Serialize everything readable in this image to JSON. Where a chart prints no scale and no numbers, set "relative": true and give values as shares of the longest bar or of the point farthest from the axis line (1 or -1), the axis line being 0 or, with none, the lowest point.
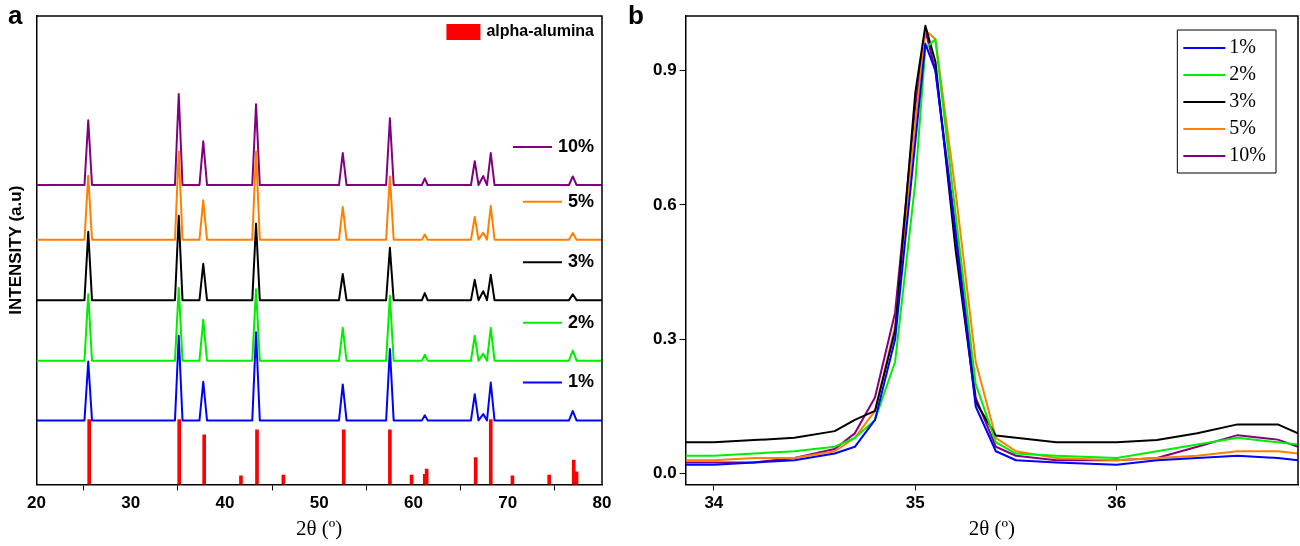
{
  "chart_data": [
    {
      "type": "line",
      "title": "a",
      "xlabel": "2θ (º)",
      "ylabel": "INTENSITY (a.u)",
      "relative": true,
      "xlim": [
        20,
        80
      ],
      "xticks": [
        20,
        30,
        40,
        50,
        60,
        70,
        80
      ],
      "legend": "top right",
      "x": [
        20,
        25.1,
        25.5,
        25.9,
        34.7,
        35.1,
        35.5,
        37.3,
        37.7,
        38.1,
        42.9,
        43.3,
        43.7,
        52.1,
        52.5,
        52.9,
        57.1,
        57.5,
        57.9,
        60.9,
        61.2,
        61.5,
        66.1,
        66.5,
        66.9,
        67.4,
        67.8,
        68.2,
        68.6,
        76.5,
        76.9,
        77.3,
        80
      ],
      "series": [
        {
          "name": "alpha-alumina",
          "type": "bar",
          "color": "#ff0000",
          "x": [
            25.6,
            35.15,
            37.8,
            41.7,
            43.4,
            46.2,
            52.6,
            57.5,
            59.8,
            61.2,
            61.4,
            66.6,
            68.2,
            70.5,
            74.4,
            77.0,
            77.3
          ],
          "values": [
            0.166,
            0.166,
            0.127,
            0.022,
            0.14,
            0.024,
            0.14,
            0.14,
            0.024,
            0.026,
            0.039,
            0.069,
            0.166,
            0.022,
            0.024,
            0.0625,
            0.032
          ]
        },
        {
          "name": "1%",
          "color": "#0000ff",
          "values": [
            0.164,
            0.164,
            0.315,
            0.164,
            0.164,
            0.381,
            0.164,
            0.164,
            0.263,
            0.164,
            0.164,
            0.39,
            0.164,
            0.164,
            0.256,
            0.164,
            0.164,
            0.347,
            0.164,
            0.164,
            0.177,
            0.164,
            0.164,
            0.231,
            0.164,
            0.18,
            0.164,
            0.261,
            0.164,
            0.164,
            0.188,
            0.164,
            0.164
          ]
        },
        {
          "name": "2%",
          "color": "#00ee00",
          "values": [
            0.317,
            0.317,
            0.487,
            0.317,
            0.317,
            0.504,
            0.317,
            0.317,
            0.422,
            0.317,
            0.317,
            0.5,
            0.317,
            0.317,
            0.401,
            0.317,
            0.317,
            0.483,
            0.317,
            0.317,
            0.332,
            0.317,
            0.317,
            0.381,
            0.317,
            0.335,
            0.317,
            0.401,
            0.317,
            0.317,
            0.343,
            0.317,
            0.317
          ]
        },
        {
          "name": "3%",
          "color": "#000000",
          "values": [
            0.472,
            0.472,
            0.647,
            0.472,
            0.472,
            0.688,
            0.472,
            0.472,
            0.565,
            0.472,
            0.472,
            0.668,
            0.472,
            0.472,
            0.539,
            0.472,
            0.472,
            0.606,
            0.472,
            0.472,
            0.49,
            0.472,
            0.472,
            0.524,
            0.472,
            0.495,
            0.472,
            0.537,
            0.472,
            0.472,
            0.487,
            0.472,
            0.472
          ]
        },
        {
          "name": "5%",
          "color": "#ff8000",
          "values": [
            0.627,
            0.627,
            0.791,
            0.627,
            0.627,
            0.853,
            0.627,
            0.627,
            0.728,
            0.627,
            0.627,
            0.853,
            0.627,
            0.627,
            0.711,
            0.627,
            0.627,
            0.789,
            0.627,
            0.627,
            0.64,
            0.627,
            0.627,
            0.685,
            0.627,
            0.645,
            0.627,
            0.713,
            0.627,
            0.627,
            0.644,
            0.627,
            0.627
          ]
        },
        {
          "name": "10%",
          "color": "#800080",
          "values": [
            0.767,
            0.767,
            0.933,
            0.767,
            0.767,
            1,
            0.767,
            0.767,
            0.879,
            0.767,
            0.767,
            0.974,
            0.767,
            0.767,
            0.849,
            0.767,
            0.767,
            0.938,
            0.767,
            0.767,
            0.784,
            0.767,
            0.767,
            0.828,
            0.767,
            0.79,
            0.767,
            0.849,
            0.767,
            0.767,
            0.789,
            0.767,
            0.767
          ]
        }
      ]
    },
    {
      "type": "line",
      "title": "b",
      "xlabel": "2θ (º)",
      "xlim": [
        33.86,
        36.9
      ],
      "xticks": [
        34,
        35,
        36
      ],
      "ylim": [
        -0.024,
        1.022
      ],
      "yticks": [
        {
          "value": 0,
          "label": "0.0"
        },
        0.3,
        0.6,
        0.9
      ],
      "legend": "top right",
      "x": [
        33.86,
        34,
        34.2,
        34.4,
        34.6,
        34.7,
        34.8,
        34.9,
        35.0,
        35.05,
        35.1,
        35.2,
        35.3,
        35.4,
        35.5,
        35.7,
        36,
        36.2,
        36.4,
        36.6,
        36.8,
        36.9
      ],
      "series": [
        {
          "name": "1%",
          "color": "#0000ff",
          "values": [
            0.02,
            0.02,
            0.025,
            0.03,
            0.045,
            0.06,
            0.12,
            0.3,
            0.74,
            0.96,
            0.9,
            0.53,
            0.15,
            0.05,
            0.03,
            0.025,
            0.02,
            0.03,
            0.035,
            0.04,
            0.035,
            0.03
          ]
        },
        {
          "name": "2%",
          "color": "#00ee00",
          "values": [
            0.04,
            0.04,
            0.045,
            0.05,
            0.06,
            0.08,
            0.12,
            0.25,
            0.65,
            0.95,
            0.97,
            0.58,
            0.2,
            0.07,
            0.045,
            0.04,
            0.035,
            0.05,
            0.065,
            0.08,
            0.07,
            0.065
          ]
        },
        {
          "name": "3%",
          "color": "#000000",
          "values": [
            0.07,
            0.07,
            0.075,
            0.08,
            0.095,
            0.12,
            0.14,
            0.32,
            0.85,
            1.0,
            0.92,
            0.5,
            0.16,
            0.085,
            0.08,
            0.07,
            0.07,
            0.075,
            0.09,
            0.11,
            0.11,
            0.09
          ]
        },
        {
          "name": "5%",
          "color": "#ff8000",
          "values": [
            0.03,
            0.03,
            0.035,
            0.035,
            0.05,
            0.08,
            0.14,
            0.33,
            0.78,
            0.99,
            0.97,
            0.63,
            0.25,
            0.08,
            0.05,
            0.035,
            0.03,
            0.035,
            0.04,
            0.05,
            0.05,
            0.045
          ]
        },
        {
          "name": "10%",
          "color": "#800080",
          "values": [
            0.025,
            0.025,
            0.025,
            0.035,
            0.055,
            0.09,
            0.17,
            0.36,
            0.82,
            0.99,
            0.9,
            0.55,
            0.17,
            0.06,
            0.04,
            0.03,
            0.03,
            0.035,
            0.06,
            0.086,
            0.076,
            0.06
          ]
        }
      ]
    }
  ]
}
